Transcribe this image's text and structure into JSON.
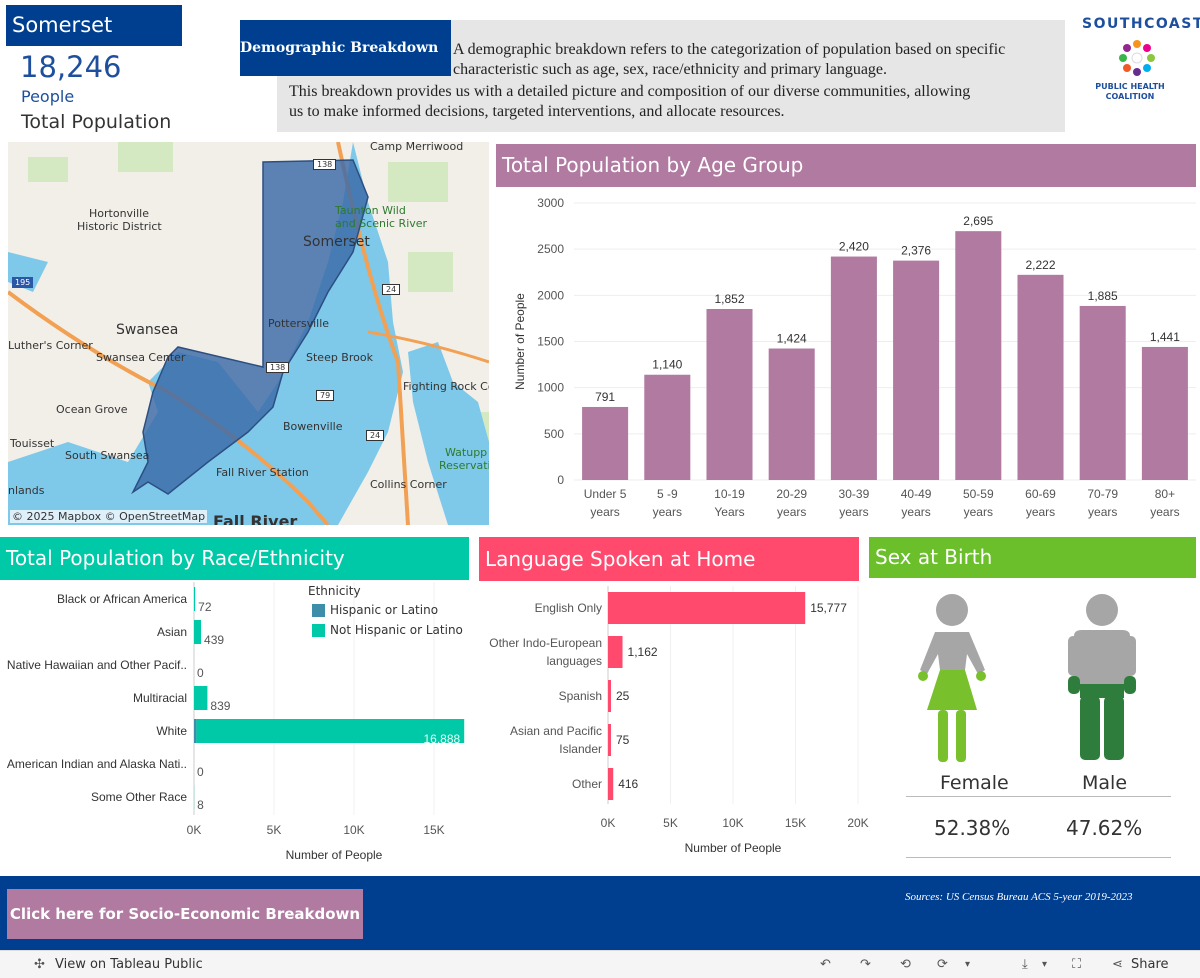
{
  "header": {
    "town": "Somerset",
    "population_value": "18,246",
    "population_unit": "People",
    "population_label": "Total Population"
  },
  "info": {
    "title": "Demographic  Breakdown",
    "line1": "A demographic breakdown refers to the categorization of population based on specific",
    "line2": "characteristic such as age, sex, race/ethnicity and primary language.",
    "line3": "This breakdown provides us with a detailed picture and composition of our diverse communities, allowing",
    "line4": "us to make informed decisions, targeted interventions, and allocate resources."
  },
  "logo": {
    "top": "SOUTHCOAST",
    "line1": "PUBLIC HEALTH",
    "line2": "COALITION"
  },
  "map": {
    "labels": [
      "Camp Merriwood",
      "Taunton Wild",
      "and Scenic River",
      "Hortonville",
      "Historic District",
      "Somerset",
      "Swansea",
      "Swansea Center",
      "Pottersville",
      "Steep Brook",
      "Luther's Corner",
      "Ocean Grove",
      "Bowenville",
      "Fighting Rock Co",
      "Touisset",
      "South Swansea",
      "Fall River Station",
      "Watupp",
      "Reservati",
      "Collins Corner",
      "nlands",
      "Fall River"
    ],
    "route_shields": [
      "195",
      "24",
      "138",
      "79",
      "24",
      "138"
    ],
    "attribution": "© 2025 Mapbox  © OpenStreetMap"
  },
  "age_chart": {
    "header": "Total Population by Age Group",
    "color": "#b07aa1"
  },
  "race_chart": {
    "header": "Total Population by Race/Ethnicity",
    "legend_title": "Ethnicity",
    "color_hispanic": "#3d8ea8",
    "color_not_hispanic": "#00c9a7"
  },
  "lang_chart": {
    "header": "Language Spoken at Home",
    "color": "#ff4a6e"
  },
  "sex": {
    "header": "Sex at Birth",
    "header_color": "#6abf2a",
    "female_label": "Female",
    "male_label": "Male",
    "female_pct": "52.38%",
    "male_pct": "47.62%"
  },
  "footer": {
    "button_label": "Click here for Socio-Economic Breakdown",
    "sources": "Sources:  US  Census  Bureau  ACS  5-year  2019-2023"
  },
  "toolbar": {
    "view_label": "View on Tableau Public",
    "share_label": "Share"
  },
  "chart_data": [
    {
      "type": "bar",
      "categories": [
        "Under 5 years",
        "5 -9 years",
        "10-19 Years",
        "20-29 years",
        "30-39 years",
        "40-49 years",
        "50-59 years",
        "60-69 years",
        "70-79 years",
        "80+ years"
      ],
      "values": [
        791,
        1140,
        1852,
        1424,
        2420,
        2376,
        2695,
        2222,
        1885,
        1441
      ],
      "value_labels": [
        "791",
        "1,140",
        "1,852",
        "1,424",
        "2,420",
        "2,376",
        "2,695",
        "2,222",
        "1,885",
        "1,441"
      ],
      "title": "Total Population by Age Group",
      "xlabel": "",
      "ylabel": "Number of People",
      "yticks": [
        "0",
        "500",
        "1000",
        "1500",
        "2000",
        "2500",
        "3000"
      ],
      "ylim": [
        0,
        3000
      ]
    },
    {
      "type": "bar",
      "orientation": "horizontal",
      "stacked": true,
      "categories": [
        "Black or African America",
        "Asian",
        "Native Hawaiian and Other Pacif..",
        "Multiracial",
        "White",
        "American Indian and Alaska Nati..",
        "Some Other Race"
      ],
      "series": [
        {
          "name": "Hispanic or Latino",
          "values": [
            0,
            0,
            0,
            0,
            150,
            0,
            0
          ]
        },
        {
          "name": "Not Hispanic or Latino",
          "values": [
            72,
            439,
            0,
            839,
            16738,
            0,
            8
          ]
        }
      ],
      "total_labels": [
        "72",
        "439",
        "0",
        "839",
        "16,888",
        "0",
        "8"
      ],
      "title": "Total Population by Race/Ethnicity",
      "xlabel": "Number of People",
      "xticks": [
        "0K",
        "5K",
        "10K",
        "15K"
      ],
      "xlim": [
        0,
        17500
      ],
      "legend_position": "top-right"
    },
    {
      "type": "bar",
      "orientation": "horizontal",
      "categories": [
        "English Only",
        "Other Indo-European languages",
        "Spanish",
        "Asian and Pacific Islander",
        "Other"
      ],
      "category_lines": [
        [
          "English Only"
        ],
        [
          "Other Indo-European",
          "languages"
        ],
        [
          "Spanish"
        ],
        [
          "Asian and Pacific",
          "Islander"
        ],
        [
          "Other"
        ]
      ],
      "values": [
        15777,
        1162,
        25,
        75,
        416
      ],
      "value_labels": [
        "15,777",
        "1,162",
        "25",
        "75",
        "416"
      ],
      "title": "Language Spoken at Home",
      "xlabel": "Number of People",
      "xticks": [
        "0K",
        "5K",
        "10K",
        "15K",
        "20K"
      ],
      "xlim": [
        0,
        20000
      ]
    }
  ]
}
